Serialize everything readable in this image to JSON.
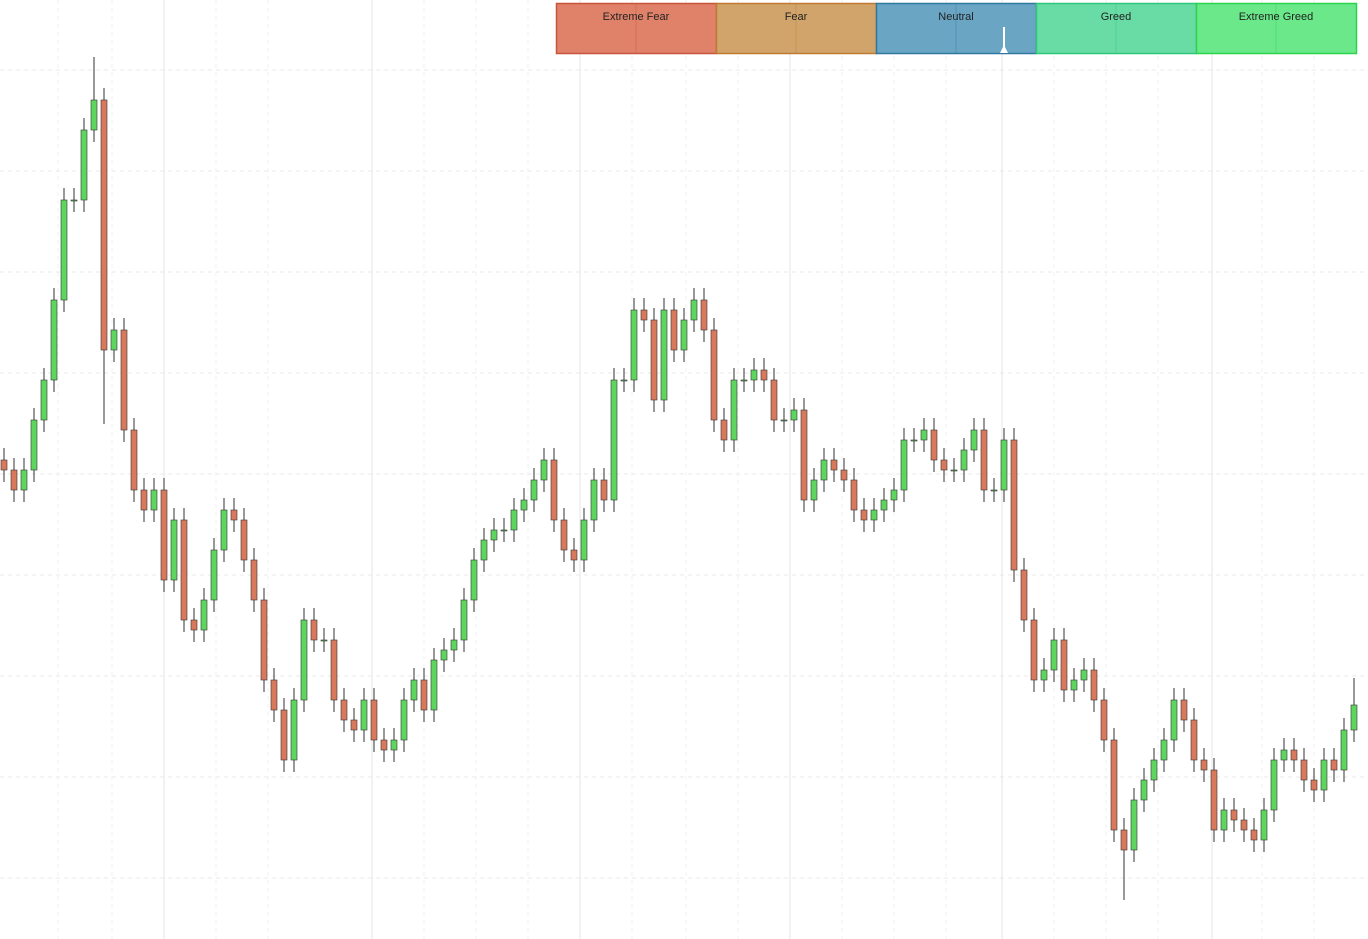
{
  "chart_data": {
    "type": "candlestick",
    "ylim": [
      0,
      939
    ],
    "up_color": "#5cd65c",
    "down_color": "#d9785a",
    "open": [
      479,
      469,
      449,
      469,
      519,
      559,
      639,
      739,
      739,
      809,
      839,
      589,
      609,
      509,
      449,
      429,
      449,
      359,
      419,
      319,
      309,
      339,
      389,
      429,
      419,
      379,
      339,
      259,
      229,
      179,
      239,
      319,
      299,
      299,
      239,
      219,
      209,
      239,
      199,
      189,
      199,
      239,
      259,
      229,
      279,
      289,
      299,
      339,
      379,
      399,
      409,
      409,
      429,
      439,
      459,
      479,
      419,
      389,
      379,
      419,
      459,
      439,
      559,
      559,
      629,
      619,
      539,
      629,
      589,
      619,
      639,
      609,
      519,
      499,
      559,
      559,
      569,
      559,
      519,
      519,
      529,
      439,
      459,
      479,
      469,
      459,
      429,
      419,
      429,
      439,
      449,
      499,
      499,
      509,
      479,
      469,
      469,
      489,
      509,
      449,
      449,
      499,
      369,
      319,
      259,
      269,
      299,
      249,
      259,
      269,
      239,
      199,
      109,
      89,
      139,
      159,
      179,
      199,
      239,
      219,
      179,
      169,
      109,
      129,
      119,
      109,
      99,
      129,
      179,
      189,
      179,
      159,
      149,
      179,
      169,
      209
    ],
    "high": [
      491,
      481,
      481,
      531,
      571,
      651,
      751,
      751,
      821,
      882,
      851,
      621,
      621,
      521,
      461,
      461,
      461,
      431,
      431,
      331,
      351,
      401,
      441,
      441,
      431,
      391,
      351,
      271,
      241,
      251,
      331,
      331,
      311,
      311,
      251,
      231,
      251,
      251,
      211,
      211,
      251,
      271,
      271,
      291,
      301,
      311,
      351,
      391,
      411,
      421,
      421,
      441,
      451,
      471,
      491,
      491,
      431,
      401,
      431,
      471,
      471,
      571,
      571,
      641,
      641,
      631,
      641,
      641,
      631,
      651,
      651,
      621,
      531,
      571,
      571,
      581,
      581,
      571,
      531,
      541,
      541,
      471,
      491,
      491,
      481,
      471,
      441,
      441,
      451,
      461,
      511,
      511,
      521,
      521,
      491,
      481,
      501,
      521,
      521,
      461,
      511,
      511,
      381,
      331,
      281,
      311,
      311,
      271,
      281,
      281,
      251,
      211,
      121,
      151,
      171,
      191,
      211,
      251,
      251,
      231,
      191,
      181,
      141,
      141,
      131,
      121,
      141,
      191,
      201,
      201,
      191,
      171,
      191,
      191,
      221,
      261
    ],
    "low": [
      457,
      437,
      437,
      457,
      507,
      547,
      627,
      727,
      727,
      797,
      515,
      577,
      497,
      437,
      417,
      417,
      347,
      347,
      307,
      297,
      297,
      327,
      377,
      407,
      367,
      327,
      247,
      217,
      167,
      167,
      227,
      287,
      287,
      227,
      207,
      197,
      197,
      187,
      177,
      177,
      187,
      227,
      217,
      217,
      267,
      277,
      287,
      327,
      367,
      387,
      397,
      397,
      417,
      427,
      447,
      407,
      377,
      367,
      367,
      407,
      427,
      427,
      547,
      547,
      607,
      527,
      527,
      577,
      577,
      607,
      597,
      507,
      487,
      487,
      547,
      547,
      547,
      507,
      507,
      507,
      427,
      427,
      447,
      457,
      447,
      417,
      407,
      407,
      417,
      427,
      437,
      487,
      487,
      467,
      457,
      457,
      457,
      477,
      437,
      437,
      437,
      357,
      307,
      247,
      247,
      257,
      237,
      237,
      247,
      227,
      187,
      97,
      39,
      77,
      127,
      147,
      167,
      187,
      207,
      167,
      157,
      97,
      97,
      107,
      97,
      87,
      87,
      117,
      167,
      167,
      147,
      137,
      137,
      157,
      157,
      197
    ],
    "close": [
      469,
      449,
      469,
      519,
      559,
      639,
      739,
      739,
      809,
      839,
      589,
      609,
      509,
      449,
      429,
      449,
      359,
      419,
      319,
      309,
      339,
      389,
      429,
      419,
      379,
      339,
      259,
      229,
      179,
      239,
      319,
      299,
      299,
      239,
      219,
      209,
      239,
      199,
      189,
      199,
      239,
      259,
      229,
      279,
      289,
      299,
      339,
      379,
      399,
      409,
      409,
      429,
      439,
      459,
      479,
      419,
      389,
      379,
      419,
      459,
      439,
      559,
      559,
      629,
      619,
      539,
      629,
      589,
      619,
      639,
      609,
      519,
      499,
      559,
      559,
      569,
      559,
      519,
      519,
      529,
      439,
      459,
      479,
      469,
      459,
      429,
      419,
      429,
      439,
      449,
      499,
      499,
      509,
      479,
      469,
      469,
      489,
      509,
      449,
      449,
      499,
      369,
      319,
      259,
      269,
      299,
      249,
      259,
      269,
      239,
      199,
      109,
      89,
      139,
      159,
      179,
      199,
      239,
      219,
      179,
      169,
      109,
      129,
      119,
      109,
      99,
      129,
      179,
      189,
      179,
      159,
      149,
      179,
      169,
      209,
      234
    ],
    "gauge": {
      "zones": [
        {
          "label": "Extreme Fear",
          "color": "#e0826a"
        },
        {
          "label": "Fear",
          "color": "#d0a46a"
        },
        {
          "label": "Neutral",
          "color": "#6aa6c4"
        },
        {
          "label": "Greed",
          "color": "#69dba5"
        },
        {
          "label": "Extreme Greed",
          "color": "#6ae88a"
        }
      ],
      "borders": [
        "#c8543a",
        "#c07a30",
        "#2f78a0",
        "#2ec87a",
        "#2ad44e"
      ],
      "value": 56,
      "lim": [
        0,
        100
      ]
    }
  }
}
